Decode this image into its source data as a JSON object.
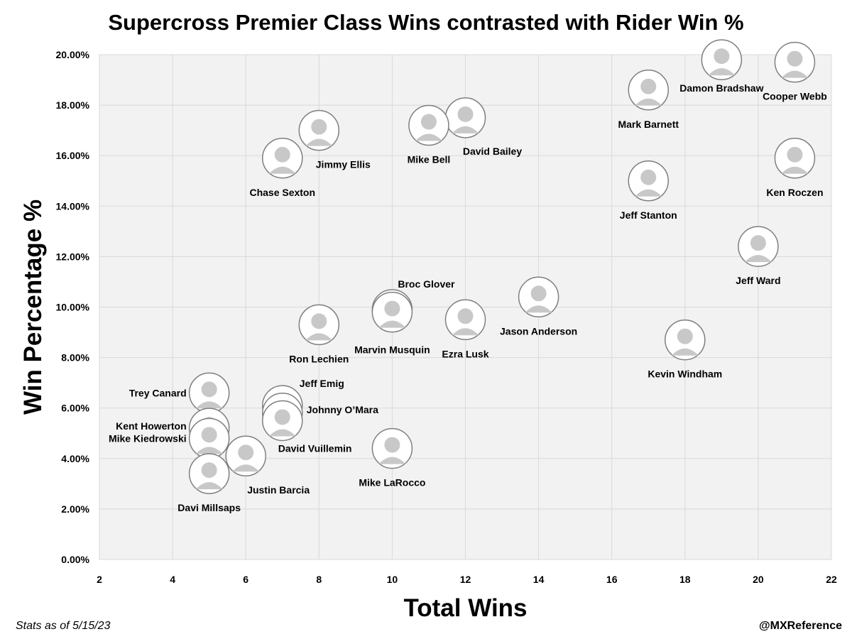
{
  "title": "Supercross Premier Class Wins contrasted with Rider Win %",
  "footnote": "Stats as of 5/15/23",
  "credit": "@MXReference",
  "colors": {
    "plot_bg": "#f2f2f2",
    "grid": "#d9d9d9",
    "marker_border": "#7f7f7f",
    "marker_fill": "#c8c8c8"
  },
  "chart_data": {
    "type": "scatter",
    "title": "Supercross Premier Class Wins contrasted with Rider Win %",
    "xlabel": "Total Wins",
    "ylabel": "Win Percentage %",
    "xlim": [
      2,
      22
    ],
    "ylim": [
      0,
      20
    ],
    "x_ticks": [
      "2",
      "4",
      "6",
      "8",
      "10",
      "12",
      "14",
      "16",
      "18",
      "20",
      "22"
    ],
    "y_ticks": [
      "0.00%",
      "2.00%",
      "4.00%",
      "6.00%",
      "8.00%",
      "10.00%",
      "12.00%",
      "14.00%",
      "16.00%",
      "18.00%",
      "20.00%"
    ],
    "grid": true,
    "marker": "rider-photo",
    "points": [
      {
        "name": "Damon Bradshaw",
        "x": 19,
        "y": 19.8
      },
      {
        "name": "Cooper Webb",
        "x": 21,
        "y": 19.7
      },
      {
        "name": "Mark Barnett",
        "x": 17,
        "y": 18.6
      },
      {
        "name": "David Bailey",
        "x": 12,
        "y": 17.5
      },
      {
        "name": "Mike Bell",
        "x": 11,
        "y": 17.2
      },
      {
        "name": "Jimmy Ellis",
        "x": 8,
        "y": 17.0
      },
      {
        "name": "Chase Sexton",
        "x": 7,
        "y": 15.9
      },
      {
        "name": "Ken Roczen",
        "x": 21,
        "y": 15.9
      },
      {
        "name": "Jeff Stanton",
        "x": 17,
        "y": 15.0
      },
      {
        "name": "Jeff Ward",
        "x": 20,
        "y": 12.4
      },
      {
        "name": "Jason Anderson",
        "x": 14,
        "y": 10.4
      },
      {
        "name": "Broc Glover",
        "x": 10,
        "y": 9.9
      },
      {
        "name": "Marvin Musquin",
        "x": 10,
        "y": 9.8
      },
      {
        "name": "Ezra Lusk",
        "x": 12,
        "y": 9.5
      },
      {
        "name": "Ron Lechien",
        "x": 8,
        "y": 9.3
      },
      {
        "name": "Kevin Windham",
        "x": 18,
        "y": 8.7
      },
      {
        "name": "Trey Canard",
        "x": 5,
        "y": 6.6
      },
      {
        "name": "Jeff Emig",
        "x": 7,
        "y": 6.1
      },
      {
        "name": "Johnny O’Mara",
        "x": 7,
        "y": 5.8
      },
      {
        "name": "David Vuillemin",
        "x": 7,
        "y": 5.5
      },
      {
        "name": "Kent Howerton",
        "x": 5,
        "y": 5.2
      },
      {
        "name": "Mike Kiedrowski",
        "x": 5,
        "y": 4.8
      },
      {
        "name": "Mike LaRocco",
        "x": 10,
        "y": 4.4
      },
      {
        "name": "Justin Barcia",
        "x": 6,
        "y": 4.1
      },
      {
        "name": "Davi Millsaps",
        "x": 5,
        "y": 3.4
      }
    ]
  }
}
